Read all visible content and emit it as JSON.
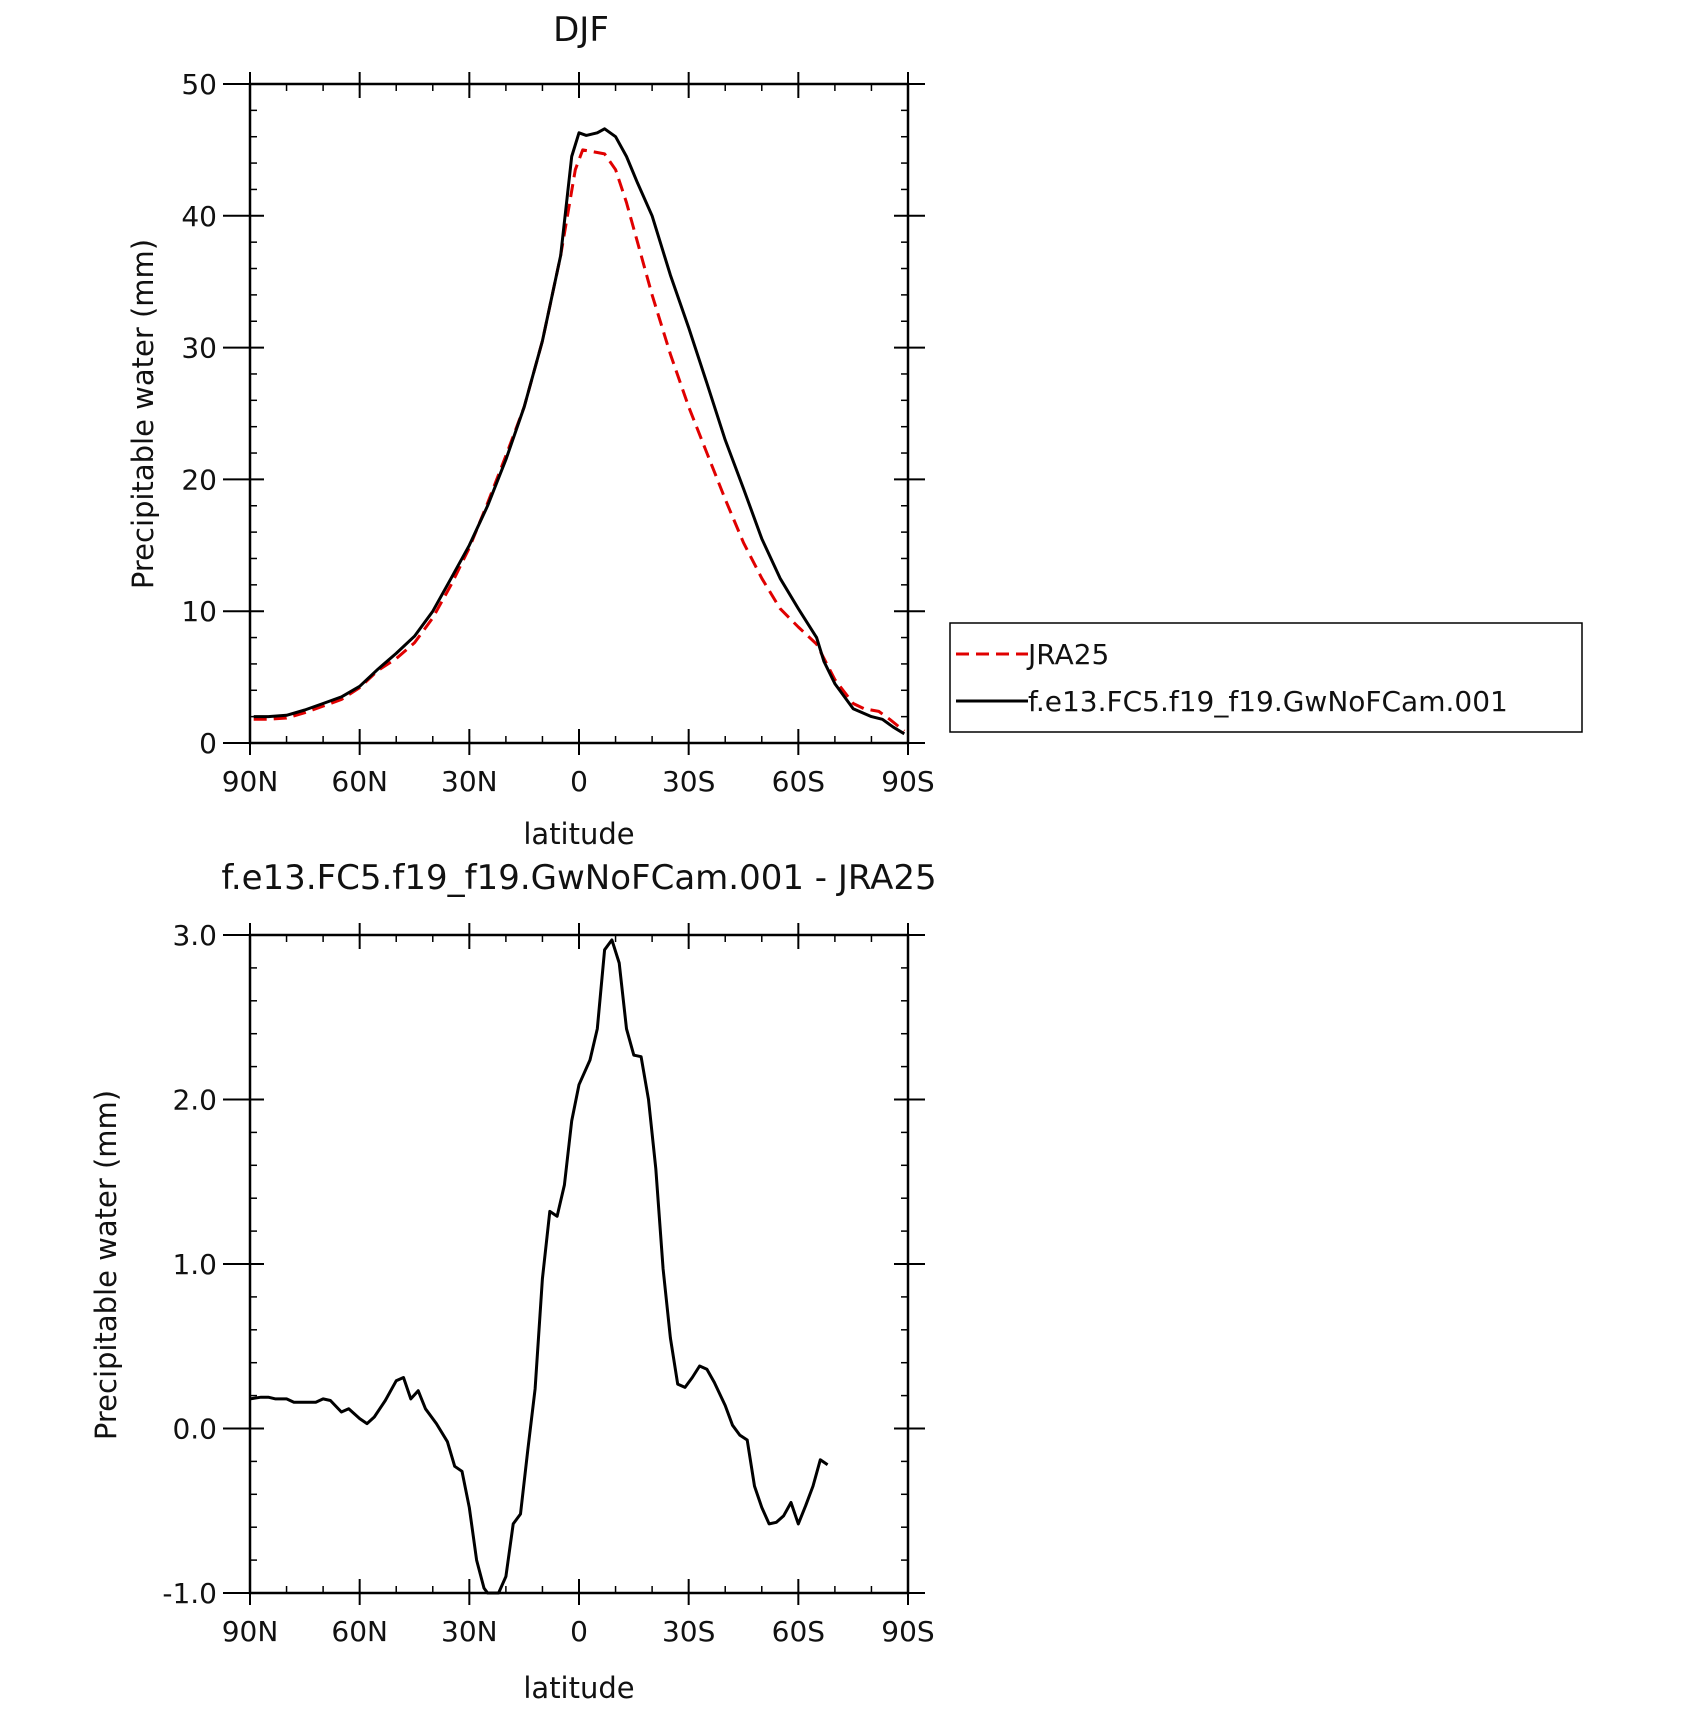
{
  "chart_data": [
    {
      "type": "line",
      "title": "DJF",
      "xlabel": "latitude",
      "ylabel": "Precipitable water (mm)",
      "xlim": [
        90,
        -90
      ],
      "ylim": [
        0,
        50
      ],
      "xticks": [
        {
          "value": 90,
          "label": "90N"
        },
        {
          "value": 60,
          "label": "60N"
        },
        {
          "value": 30,
          "label": "30N"
        },
        {
          "value": 0,
          "label": "0"
        },
        {
          "value": -30,
          "label": "30S"
        },
        {
          "value": -60,
          "label": "60S"
        },
        {
          "value": -90,
          "label": "90S"
        }
      ],
      "yticks": [
        {
          "value": 0,
          "label": "0"
        },
        {
          "value": 10,
          "label": "10"
        },
        {
          "value": 20,
          "label": "20"
        },
        {
          "value": 30,
          "label": "30"
        },
        {
          "value": 40,
          "label": "40"
        },
        {
          "value": 50,
          "label": "50"
        }
      ],
      "series": [
        {
          "name": "JRA25",
          "color": "#e00000",
          "dash": true,
          "points": [
            [
              89,
              1.8
            ],
            [
              85,
              1.8
            ],
            [
              80,
              1.9
            ],
            [
              75,
              2.3
            ],
            [
              70,
              2.8
            ],
            [
              65,
              3.3
            ],
            [
              60,
              4.2
            ],
            [
              55,
              5.5
            ],
            [
              50,
              6.4
            ],
            [
              45,
              7.6
            ],
            [
              40,
              9.5
            ],
            [
              35,
              12.0
            ],
            [
              30,
              14.8
            ],
            [
              25,
              18.2
            ],
            [
              20,
              21.8
            ],
            [
              15,
              25.5
            ],
            [
              10,
              30.5
            ],
            [
              5,
              37.0
            ],
            [
              1,
              43.5
            ],
            [
              -1,
              45.0
            ],
            [
              -5,
              44.8
            ],
            [
              -7,
              44.7
            ],
            [
              -10,
              43.5
            ],
            [
              -13,
              41.0
            ],
            [
              -16,
              38.0
            ],
            [
              -20,
              34.0
            ],
            [
              -25,
              29.5
            ],
            [
              -30,
              25.5
            ],
            [
              -35,
              22.0
            ],
            [
              -40,
              18.5
            ],
            [
              -45,
              15.2
            ],
            [
              -50,
              12.5
            ],
            [
              -55,
              10.2
            ],
            [
              -60,
              8.8
            ],
            [
              -65,
              7.5
            ],
            [
              -70,
              4.8
            ],
            [
              -75,
              3.0
            ],
            [
              -78,
              2.6
            ],
            [
              -82,
              2.4
            ],
            [
              -85,
              1.8
            ],
            [
              -89,
              0.9
            ]
          ]
        },
        {
          "name": "f.e13.FC5.f19_f19.GwNoFCam.001",
          "color": "#000000",
          "dash": false,
          "points": [
            [
              89,
              2.0
            ],
            [
              85,
              2.0
            ],
            [
              80,
              2.1
            ],
            [
              75,
              2.5
            ],
            [
              70,
              3.0
            ],
            [
              65,
              3.5
            ],
            [
              60,
              4.3
            ],
            [
              55,
              5.6
            ],
            [
              50,
              6.8
            ],
            [
              45,
              8.1
            ],
            [
              40,
              10.0
            ],
            [
              35,
              12.5
            ],
            [
              30,
              15.0
            ],
            [
              25,
              18.0
            ],
            [
              20,
              21.5
            ],
            [
              15,
              25.5
            ],
            [
              10,
              30.5
            ],
            [
              5,
              37.0
            ],
            [
              2,
              44.5
            ],
            [
              0,
              46.3
            ],
            [
              -2,
              46.1
            ],
            [
              -5,
              46.3
            ],
            [
              -7,
              46.6
            ],
            [
              -10,
              46.0
            ],
            [
              -13,
              44.5
            ],
            [
              -16,
              42.5
            ],
            [
              -20,
              40.0
            ],
            [
              -25,
              35.5
            ],
            [
              -30,
              31.5
            ],
            [
              -35,
              27.3
            ],
            [
              -40,
              23.0
            ],
            [
              -45,
              19.3
            ],
            [
              -50,
              15.5
            ],
            [
              -55,
              12.5
            ],
            [
              -60,
              10.2
            ],
            [
              -65,
              8.0
            ],
            [
              -67,
              6.2
            ],
            [
              -70,
              4.5
            ],
            [
              -75,
              2.6
            ],
            [
              -80,
              2.0
            ],
            [
              -83,
              1.8
            ],
            [
              -86,
              1.2
            ],
            [
              -89,
              0.7
            ]
          ]
        }
      ],
      "legend": {
        "position": "right",
        "entries": [
          "JRA25",
          "f.e13.FC5.f19_f19.GwNoFCam.001"
        ]
      }
    },
    {
      "type": "line",
      "title": "f.e13.FC5.f19_f19.GwNoFCam.001 - JRA25",
      "xlabel": "latitude",
      "ylabel": "Precipitable water (mm)",
      "xlim": [
        90,
        -90
      ],
      "ylim": [
        -1.0,
        3.0
      ],
      "xticks": [
        {
          "value": 90,
          "label": "90N"
        },
        {
          "value": 60,
          "label": "60N"
        },
        {
          "value": 30,
          "label": "30N"
        },
        {
          "value": 0,
          "label": "0"
        },
        {
          "value": -30,
          "label": "30S"
        },
        {
          "value": -60,
          "label": "60S"
        },
        {
          "value": -90,
          "label": "90S"
        }
      ],
      "yticks": [
        {
          "value": -1.0,
          "label": "-1.0"
        },
        {
          "value": 0.0,
          "label": "0.0"
        },
        {
          "value": 1.0,
          "label": "1.0"
        },
        {
          "value": 2.0,
          "label": "2.0"
        },
        {
          "value": 3.0,
          "label": "3.0"
        }
      ],
      "series": [
        {
          "color": "#000000",
          "dash": false,
          "points": [
            [
              90,
              0.18
            ],
            [
              87,
              0.19
            ],
            [
              85,
              0.19
            ],
            [
              83,
              0.18
            ],
            [
              80,
              0.18
            ],
            [
              78,
              0.16
            ],
            [
              75,
              0.16
            ],
            [
              72,
              0.16
            ],
            [
              70,
              0.18
            ],
            [
              68,
              0.17
            ],
            [
              65,
              0.1
            ],
            [
              63,
              0.12
            ],
            [
              60,
              0.06
            ],
            [
              58,
              0.03
            ],
            [
              56,
              0.07
            ],
            [
              53,
              0.17
            ],
            [
              50,
              0.29
            ],
            [
              48,
              0.31
            ],
            [
              46,
              0.18
            ],
            [
              44,
              0.23
            ],
            [
              42,
              0.12
            ],
            [
              39,
              0.03
            ],
            [
              36,
              -0.08
            ],
            [
              34,
              -0.23
            ],
            [
              32,
              -0.26
            ],
            [
              30,
              -0.48
            ],
            [
              28,
              -0.8
            ],
            [
              26,
              -0.97
            ],
            [
              25,
              -1.0
            ],
            [
              22,
              -1.0
            ],
            [
              20,
              -0.9
            ],
            [
              18,
              -0.58
            ],
            [
              16,
              -0.52
            ],
            [
              14,
              -0.13
            ],
            [
              12,
              0.24
            ],
            [
              10,
              0.91
            ],
            [
              8,
              1.32
            ],
            [
              6,
              1.29
            ],
            [
              4,
              1.48
            ],
            [
              2,
              1.87
            ],
            [
              0,
              2.09
            ],
            [
              -3,
              2.24
            ],
            [
              -5,
              2.43
            ],
            [
              -7,
              2.91
            ],
            [
              -9,
              2.97
            ],
            [
              -11,
              2.83
            ],
            [
              -13,
              2.43
            ],
            [
              -15,
              2.27
            ],
            [
              -17,
              2.26
            ],
            [
              -19,
              2.0
            ],
            [
              -21,
              1.58
            ],
            [
              -23,
              0.97
            ],
            [
              -25,
              0.55
            ],
            [
              -27,
              0.27
            ],
            [
              -29,
              0.25
            ],
            [
              -31,
              0.31
            ],
            [
              -33,
              0.38
            ],
            [
              -35,
              0.36
            ],
            [
              -37,
              0.28
            ],
            [
              -40,
              0.14
            ],
            [
              -42,
              0.02
            ],
            [
              -44,
              -0.04
            ],
            [
              -46,
              -0.07
            ],
            [
              -48,
              -0.35
            ],
            [
              -50,
              -0.48
            ],
            [
              -52,
              -0.58
            ],
            [
              -54,
              -0.57
            ],
            [
              -56,
              -0.53
            ],
            [
              -58,
              -0.45
            ],
            [
              -60,
              -0.58
            ],
            [
              -62,
              -0.47
            ],
            [
              -64,
              -0.35
            ],
            [
              -66,
              -0.19
            ],
            [
              -68,
              -0.22
            ]
          ]
        }
      ]
    }
  ]
}
